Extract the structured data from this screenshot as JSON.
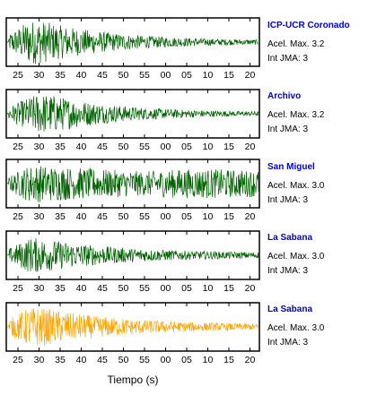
{
  "figure": {
    "xlabel": "Tiempo (s)",
    "acel_label": "Acel. Max.",
    "int_label": "Int JMA:"
  },
  "chart_data": [
    {
      "type": "line",
      "station": "ICP-UCR Coronado",
      "acel_max": "3.2",
      "int_jma": "3",
      "color": "#006400",
      "xticks": [
        "25",
        "30",
        "35",
        "40",
        "45",
        "50",
        "55",
        "00",
        "05",
        "10",
        "15",
        "20"
      ],
      "envelope": {
        "onset_tick": 0,
        "peak_tick": 1,
        "peak_amp": 0.95,
        "decay": 0.28,
        "floor": 0.06,
        "late_rise": 0.0
      }
    },
    {
      "type": "line",
      "station": "Archivo",
      "acel_max": "3.2",
      "int_jma": "3",
      "color": "#006400",
      "xticks": [
        "25",
        "30",
        "35",
        "40",
        "45",
        "50",
        "55",
        "00",
        "05",
        "10",
        "15",
        "20"
      ],
      "envelope": {
        "onset_tick": 0,
        "peak_tick": 1.5,
        "peak_amp": 0.85,
        "decay": 0.3,
        "floor": 0.06,
        "late_rise": 0.0
      }
    },
    {
      "type": "line",
      "station": "San Miguel",
      "acel_max": "3.0",
      "int_jma": "3",
      "color": "#006400",
      "xticks": [
        "25",
        "30",
        "35",
        "40",
        "45",
        "50",
        "55",
        "00",
        "05",
        "10",
        "15",
        "20"
      ],
      "envelope": {
        "onset_tick": 0,
        "peak_tick": 1,
        "peak_amp": 0.8,
        "decay": 0.12,
        "floor": 0.2,
        "late_rise": 0.2
      }
    },
    {
      "type": "line",
      "station": "La Sabana",
      "acel_max": "3.0",
      "int_jma": "3",
      "color": "#006400",
      "xticks": [
        "25",
        "30",
        "35",
        "40",
        "45",
        "50",
        "55",
        "00",
        "05",
        "10",
        "15",
        "20"
      ],
      "envelope": {
        "onset_tick": 0,
        "peak_tick": 1,
        "peak_amp": 0.75,
        "decay": 0.25,
        "floor": 0.08,
        "late_rise": 0.0
      }
    },
    {
      "type": "line",
      "station": "La Sabana",
      "acel_max": "3.0",
      "int_jma": "3",
      "color": "#ffa500",
      "xticks": [
        "25",
        "30",
        "35",
        "40",
        "45",
        "50",
        "55",
        "00",
        "05",
        "10",
        "15",
        "20"
      ],
      "envelope": {
        "onset_tick": 0,
        "peak_tick": 1,
        "peak_amp": 0.85,
        "decay": 0.25,
        "floor": 0.08,
        "late_rise": 0.0
      }
    }
  ]
}
